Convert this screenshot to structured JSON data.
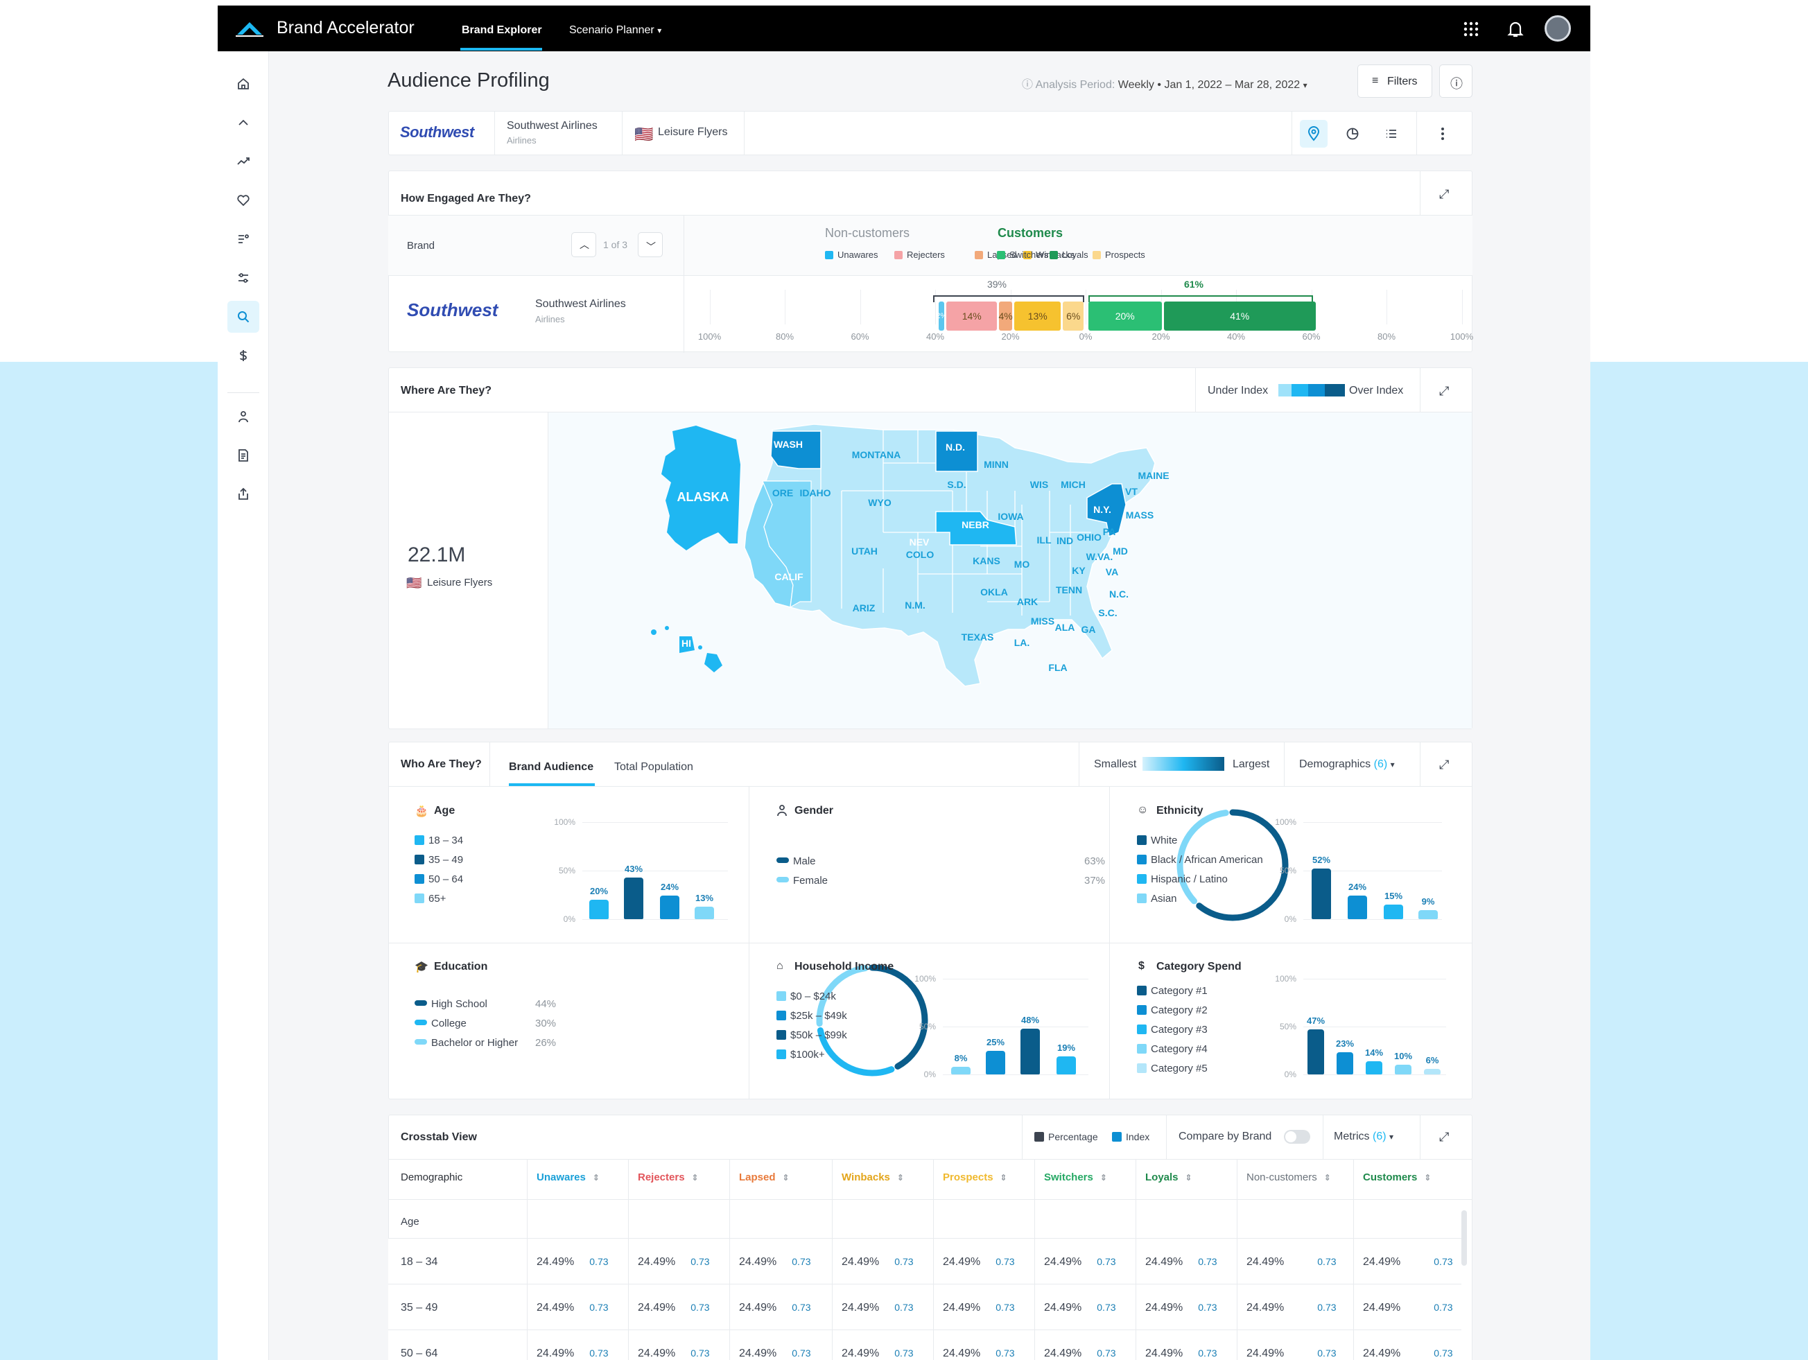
{
  "app": {
    "name": "Brand Accelerator",
    "nav": [
      "Brand Explorer",
      "Scenario Planner"
    ]
  },
  "icons": [
    "home-icon",
    "chevron-up-icon",
    "trend-icon",
    "heart-icon",
    "list-settings-icon",
    "sliders-icon",
    "search-icon",
    "dollar-icon",
    "person-icon",
    "document-icon",
    "export-icon",
    "grid-icon",
    "bell-icon",
    "info-icon",
    "filter-icon",
    "location-icon",
    "pie-icon",
    "list-icon",
    "more-icon",
    "expand-icon"
  ],
  "page": {
    "title": "Audience Profiling",
    "period_label": "Analysis Period:",
    "period_value": "Weekly",
    "period_sep": "•",
    "period_range": "Jan 1, 2022 – Mar 28, 2022",
    "filters": "Filters"
  },
  "context": {
    "brand_logo": "Southwest",
    "brand_name": "Southwest Airlines",
    "brand_category": "Airlines",
    "audience": "Leisure Flyers"
  },
  "engaged": {
    "title": "How Engaged Are They?",
    "brand_label": "Brand",
    "pager": "1 of 3",
    "groups": [
      {
        "name": "Non-customers",
        "items": [
          "Unawares",
          "Rejecters",
          "Lapsed",
          "Winbacks",
          "Prospects"
        ]
      },
      {
        "name": "Customers",
        "items": [
          "Switchers",
          "Loyals"
        ]
      }
    ],
    "non_total": "39%",
    "cust_total": "61%",
    "segments": [
      {
        "label": "2%",
        "value": 2,
        "color": "#5cc6ee"
      },
      {
        "label": "14%",
        "value": 14,
        "color": "#f5a3a6"
      },
      {
        "label": "4%",
        "value": 4,
        "color": "#f2a97a"
      },
      {
        "label": "13%",
        "value": 13,
        "color": "#f6c22f"
      },
      {
        "label": "6%",
        "value": 6,
        "color": "#fbd88c"
      },
      {
        "label": "20%",
        "value": 20,
        "color": "#2bbf74"
      },
      {
        "label": "41%",
        "value": 41,
        "color": "#1f9a58"
      }
    ],
    "axis": [
      "100%",
      "80%",
      "60%",
      "40%",
      "20%",
      "0%",
      "20%",
      "40%",
      "60%",
      "80%",
      "100%"
    ]
  },
  "where": {
    "title": "Where Are They?",
    "under": "Under Index",
    "over": "Over Index",
    "total": "22.1M",
    "audience": "Leisure Flyers",
    "states": [
      "ALASKA",
      "WASH",
      "ORE",
      "IDAHO",
      "MONTANA",
      "N.D.",
      "S.D.",
      "MINN",
      "WYO",
      "NEBR",
      "IOWA",
      "WIS",
      "MICH",
      "NEV",
      "UTAH",
      "COLO",
      "KANS",
      "MO",
      "ILL",
      "IND",
      "OHIO",
      "PA",
      "N.Y.",
      "VT",
      "MAINE",
      "MASS",
      "CALIF",
      "ARIZ",
      "N.M.",
      "OKLA",
      "ARK",
      "TENN",
      "KY",
      "W.VA.",
      "VA",
      "MD",
      "N.C.",
      "S.C.",
      "GA",
      "ALA",
      "MISS",
      "LA.",
      "TEXAS",
      "FLA",
      "HI"
    ]
  },
  "who": {
    "title": "Who Are They?",
    "tabs": [
      "Brand Audience",
      "Total Population"
    ],
    "smallest": "Smallest",
    "largest": "Largest",
    "demographics": "Demographics",
    "demo_count": "(6)",
    "age": {
      "title": "Age",
      "legend": [
        "18 – 34",
        "35 – 49",
        "50 – 64",
        "65+"
      ],
      "values": [
        20,
        43,
        24,
        13
      ],
      "labels": [
        "20%",
        "43%",
        "24%",
        "13%"
      ]
    },
    "gender": {
      "title": "Gender",
      "legend": [
        "Male",
        "Female"
      ],
      "pcts": [
        "63%",
        "37%"
      ],
      "values": [
        63,
        37
      ]
    },
    "ethnicity": {
      "title": "Ethnicity",
      "legend": [
        "White",
        "Black / African American",
        "Hispanic / Latino",
        "Asian"
      ],
      "values": [
        52,
        24,
        15,
        9
      ],
      "labels": [
        "52%",
        "24%",
        "15%",
        "9%"
      ]
    },
    "education": {
      "title": "Education",
      "legend": [
        "High School",
        "College",
        "Bachelor or Higher"
      ],
      "pcts": [
        "44%",
        "30%",
        "26%"
      ],
      "values": [
        44,
        30,
        26
      ]
    },
    "income": {
      "title": "Household Income",
      "legend": [
        "$0 – $24k",
        "$25k – $49k",
        "$50k – $99k",
        "$100k+"
      ],
      "values": [
        8,
        25,
        48,
        19
      ],
      "labels": [
        "8%",
        "25%",
        "48%",
        "19%"
      ]
    },
    "spend": {
      "title": "Category Spend",
      "legend": [
        "Category #1",
        "Category #2",
        "Category #3",
        "Category #4",
        "Category #5"
      ],
      "values": [
        47,
        23,
        14,
        10,
        6
      ],
      "labels": [
        "47%",
        "23%",
        "14%",
        "10%",
        "6%"
      ]
    },
    "axis": [
      "100%",
      "50%",
      "0%"
    ]
  },
  "crosstab": {
    "title": "Crosstab View",
    "percentage": "Percentage",
    "index": "Index",
    "compare": "Compare by Brand",
    "metrics": "Metrics",
    "metrics_count": "(6)",
    "columns": [
      "Demographic",
      "Unawares",
      "Rejecters",
      "Lapsed",
      "Winbacks",
      "Prospects",
      "Switchers",
      "Loyals",
      "Non-customers",
      "Customers"
    ],
    "group": "Age",
    "rows": [
      {
        "label": "18 – 34",
        "pct": "24.49%",
        "idx": "0.73"
      },
      {
        "label": "35 – 49",
        "pct": "24.49%",
        "idx": "0.73"
      },
      {
        "label": "50 – 64",
        "pct": "24.49%",
        "idx": "0.73"
      }
    ]
  },
  "colors": {
    "accent": "#1cb8f2",
    "dark": "#0a5c8a",
    "mid": "#0d8fd3",
    "light": "#1fb7f2",
    "pale": "#7fd8f8"
  }
}
